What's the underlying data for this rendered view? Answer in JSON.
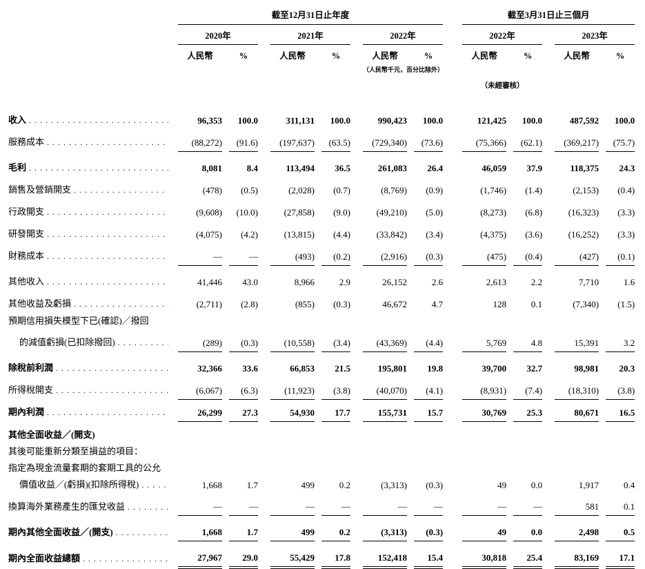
{
  "page": {
    "background": "#ffffff",
    "text_color": "#000000"
  },
  "header": {
    "groups": [
      {
        "title": "截至12月31日止年度",
        "years": [
          "2020年",
          "2021年",
          "2022年"
        ]
      },
      {
        "title": "截至3月31日止三個月",
        "years": [
          "2022年",
          "2023年"
        ]
      }
    ],
    "col_labels": {
      "currency": "人民幣",
      "percent": "%"
    },
    "unit_note": "（人民幣千元，百分比除外）",
    "unaudited_note": "（未經審核）"
  },
  "table": {
    "rows": [
      {
        "label": "收入",
        "bold": true,
        "dots": true,
        "underline": "none",
        "values": [
          "96,353",
          "100.0",
          "311,131",
          "100.0",
          "990,423",
          "100.0",
          "121,425",
          "100.0",
          "487,592",
          "100.0"
        ]
      },
      {
        "label": "服務成本",
        "bold": false,
        "dots": true,
        "underline": "single",
        "values": [
          "(88,272)",
          "(91.6)",
          "(197,637)",
          "(63.5)",
          "(729,340)",
          "(73.6)",
          "(75,366)",
          "(62.1)",
          "(369,217)",
          "(75.7)"
        ]
      },
      {
        "label": "毛利",
        "bold": true,
        "dots": true,
        "gap": true,
        "underline": "none",
        "values": [
          "8,081",
          "8.4",
          "113,494",
          "36.5",
          "261,083",
          "26.4",
          "46,059",
          "37.9",
          "118,375",
          "24.3"
        ]
      },
      {
        "label": "銷售及營銷開支",
        "bold": false,
        "dots": true,
        "underline": "none",
        "values": [
          "(478)",
          "(0.5)",
          "(2,028)",
          "(0.7)",
          "(8,769)",
          "(0.9)",
          "(1,746)",
          "(1.4)",
          "(2,153)",
          "(0.4)"
        ]
      },
      {
        "label": "行政開支",
        "bold": false,
        "dots": true,
        "underline": "none",
        "values": [
          "(9,608)",
          "(10.0)",
          "(27,858)",
          "(9.0)",
          "(49,210)",
          "(5.0)",
          "(8,273)",
          "(6.8)",
          "(16,323)",
          "(3.3)"
        ]
      },
      {
        "label": "研發開支",
        "bold": false,
        "dots": true,
        "underline": "none",
        "values": [
          "(4,075)",
          "(4.2)",
          "(13,815)",
          "(4.4)",
          "(33,842)",
          "(3.4)",
          "(4,375)",
          "(3.6)",
          "(16,252)",
          "(3.3)"
        ]
      },
      {
        "label": "財務成本",
        "bold": false,
        "dots": true,
        "underline": "single",
        "values": [
          "—",
          "—",
          "(493)",
          "(0.2)",
          "(2,916)",
          "(0.3)",
          "(475)",
          "(0.4)",
          "(427)",
          "(0.1)"
        ]
      },
      {
        "label": "其他收入",
        "bold": false,
        "dots": true,
        "gap": true,
        "underline": "none",
        "values": [
          "41,446",
          "43.0",
          "8,966",
          "2.9",
          "26,152",
          "2.6",
          "2,613",
          "2.2",
          "7,710",
          "1.6"
        ]
      },
      {
        "label": "其他收益及虧損",
        "bold": false,
        "dots": true,
        "underline": "none",
        "values": [
          "(2,711)",
          "(2.8)",
          "(855)",
          "(0.3)",
          "46,672",
          "4.7",
          "128",
          "0.1",
          "(7,340)",
          "(1.5)"
        ]
      },
      {
        "label": "預期信用損失模型下已(確認)／撥回",
        "bold": false,
        "dots": false,
        "tight": true,
        "values": null
      },
      {
        "label": "的減值虧損(已扣除撥回)",
        "bold": false,
        "dots": true,
        "indent": true,
        "underline": "single",
        "values": [
          "(289)",
          "(0.3)",
          "(10,558)",
          "(3.4)",
          "(43,369)",
          "(4.4)",
          "5,769",
          "4.8",
          "15,391",
          "3.2"
        ]
      },
      {
        "label": "除稅前利潤",
        "bold": true,
        "dots": true,
        "gap": true,
        "underline": "none",
        "values": [
          "32,366",
          "33.6",
          "66,853",
          "21.5",
          "195,801",
          "19.8",
          "39,700",
          "32.7",
          "98,981",
          "20.3"
        ]
      },
      {
        "label": "所得稅開支",
        "bold": false,
        "dots": true,
        "underline": "single",
        "values": [
          "(6,067)",
          "(6.3)",
          "(11,923)",
          "(3.8)",
          "(40,070)",
          "(4.1)",
          "(8,931)",
          "(7.4)",
          "(18,310)",
          "(3.8)"
        ]
      },
      {
        "label": "期內利潤",
        "bold": true,
        "dots": true,
        "underline": "single",
        "values": [
          "26,299",
          "27.3",
          "54,930",
          "17.7",
          "155,731",
          "15.7",
          "30,769",
          "25.3",
          "80,671",
          "16.5"
        ]
      },
      {
        "label": "其他全面收益／(開支)",
        "bold": true,
        "dots": false,
        "values": null
      },
      {
        "label": "其後可能重新分類至損益的項目：",
        "bold": false,
        "dots": false,
        "tight": true,
        "values": null
      },
      {
        "label": "指定為現金流量套期的套期工具的公允",
        "bold": false,
        "dots": false,
        "tight": true,
        "values": null
      },
      {
        "label": "價值收益／(虧損)(扣除所得稅)",
        "bold": false,
        "dots": true,
        "indent": true,
        "tight": true,
        "underline": "none",
        "values": [
          "1,668",
          "1.7",
          "499",
          "0.2",
          "(3,313)",
          "(0.3)",
          "49",
          "0.0",
          "1,917",
          "0.4"
        ]
      },
      {
        "label": "換算海外業務產生的匯兌收益",
        "bold": false,
        "dots": true,
        "underline": "single",
        "values": [
          "—",
          "—",
          "—",
          "—",
          "—",
          "—",
          "—",
          "—",
          "581",
          "0.1"
        ]
      },
      {
        "label": "期內其他全面收益／(開支)",
        "bold": true,
        "dots": true,
        "gap": true,
        "underline": "single",
        "values": [
          "1,668",
          "1.7",
          "499",
          "0.2",
          "(3,313)",
          "(0.3)",
          "49",
          "0.0",
          "2,498",
          "0.5"
        ]
      },
      {
        "label": "期內全面收益總額",
        "bold": true,
        "dots": true,
        "gap": true,
        "underline": "double",
        "values": [
          "27,967",
          "29.0",
          "55,429",
          "17.8",
          "152,418",
          "15.4",
          "30,818",
          "25.4",
          "83,169",
          "17.1"
        ]
      }
    ]
  }
}
